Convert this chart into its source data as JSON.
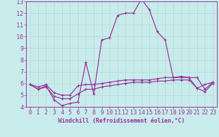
{
  "title": "",
  "xlabel": "Windchill (Refroidissement éolien,°C)",
  "background_color": "#c8ecec",
  "grid_color": "#b0d8d8",
  "line_color": "#993399",
  "xlim": [
    -0.5,
    23.5
  ],
  "ylim": [
    4,
    13
  ],
  "yticks": [
    4,
    5,
    6,
    7,
    8,
    9,
    10,
    11,
    12,
    13
  ],
  "xticks": [
    0,
    1,
    2,
    3,
    4,
    5,
    6,
    7,
    8,
    9,
    10,
    11,
    12,
    13,
    14,
    15,
    16,
    17,
    18,
    19,
    20,
    21,
    22,
    23
  ],
  "series1_x": [
    0,
    1,
    2,
    3,
    4,
    5,
    6,
    7,
    8,
    9,
    10,
    11,
    12,
    13,
    14,
    15,
    16,
    17,
    18,
    19,
    20,
    21,
    22,
    23
  ],
  "series1_y": [
    5.9,
    5.5,
    5.8,
    4.6,
    4.1,
    4.3,
    4.4,
    7.8,
    5.1,
    9.7,
    9.9,
    11.8,
    12.0,
    12.0,
    13.2,
    12.3,
    10.4,
    9.7,
    6.5,
    6.6,
    6.5,
    5.6,
    5.9,
    6.1
  ],
  "series2_x": [
    0,
    1,
    2,
    3,
    4,
    5,
    6,
    7,
    8,
    9,
    10,
    11,
    12,
    13,
    14,
    15,
    16,
    17,
    18,
    19,
    20,
    21,
    22,
    23
  ],
  "series2_y": [
    5.9,
    5.7,
    5.9,
    5.2,
    5.0,
    5.0,
    5.8,
    5.9,
    5.9,
    6.0,
    6.1,
    6.2,
    6.3,
    6.3,
    6.3,
    6.3,
    6.4,
    6.5,
    6.5,
    6.5,
    6.5,
    6.5,
    5.5,
    6.1
  ],
  "series3_x": [
    0,
    1,
    2,
    3,
    4,
    5,
    6,
    7,
    8,
    9,
    10,
    11,
    12,
    13,
    14,
    15,
    16,
    17,
    18,
    19,
    20,
    21,
    22,
    23
  ],
  "series3_y": [
    5.9,
    5.5,
    5.7,
    4.9,
    4.7,
    4.7,
    5.1,
    5.5,
    5.5,
    5.7,
    5.8,
    5.9,
    6.0,
    6.1,
    6.1,
    6.1,
    6.2,
    6.2,
    6.3,
    6.3,
    6.3,
    5.6,
    5.3,
    6.0
  ],
  "tick_fontsize": 6,
  "xlabel_fontsize": 6
}
